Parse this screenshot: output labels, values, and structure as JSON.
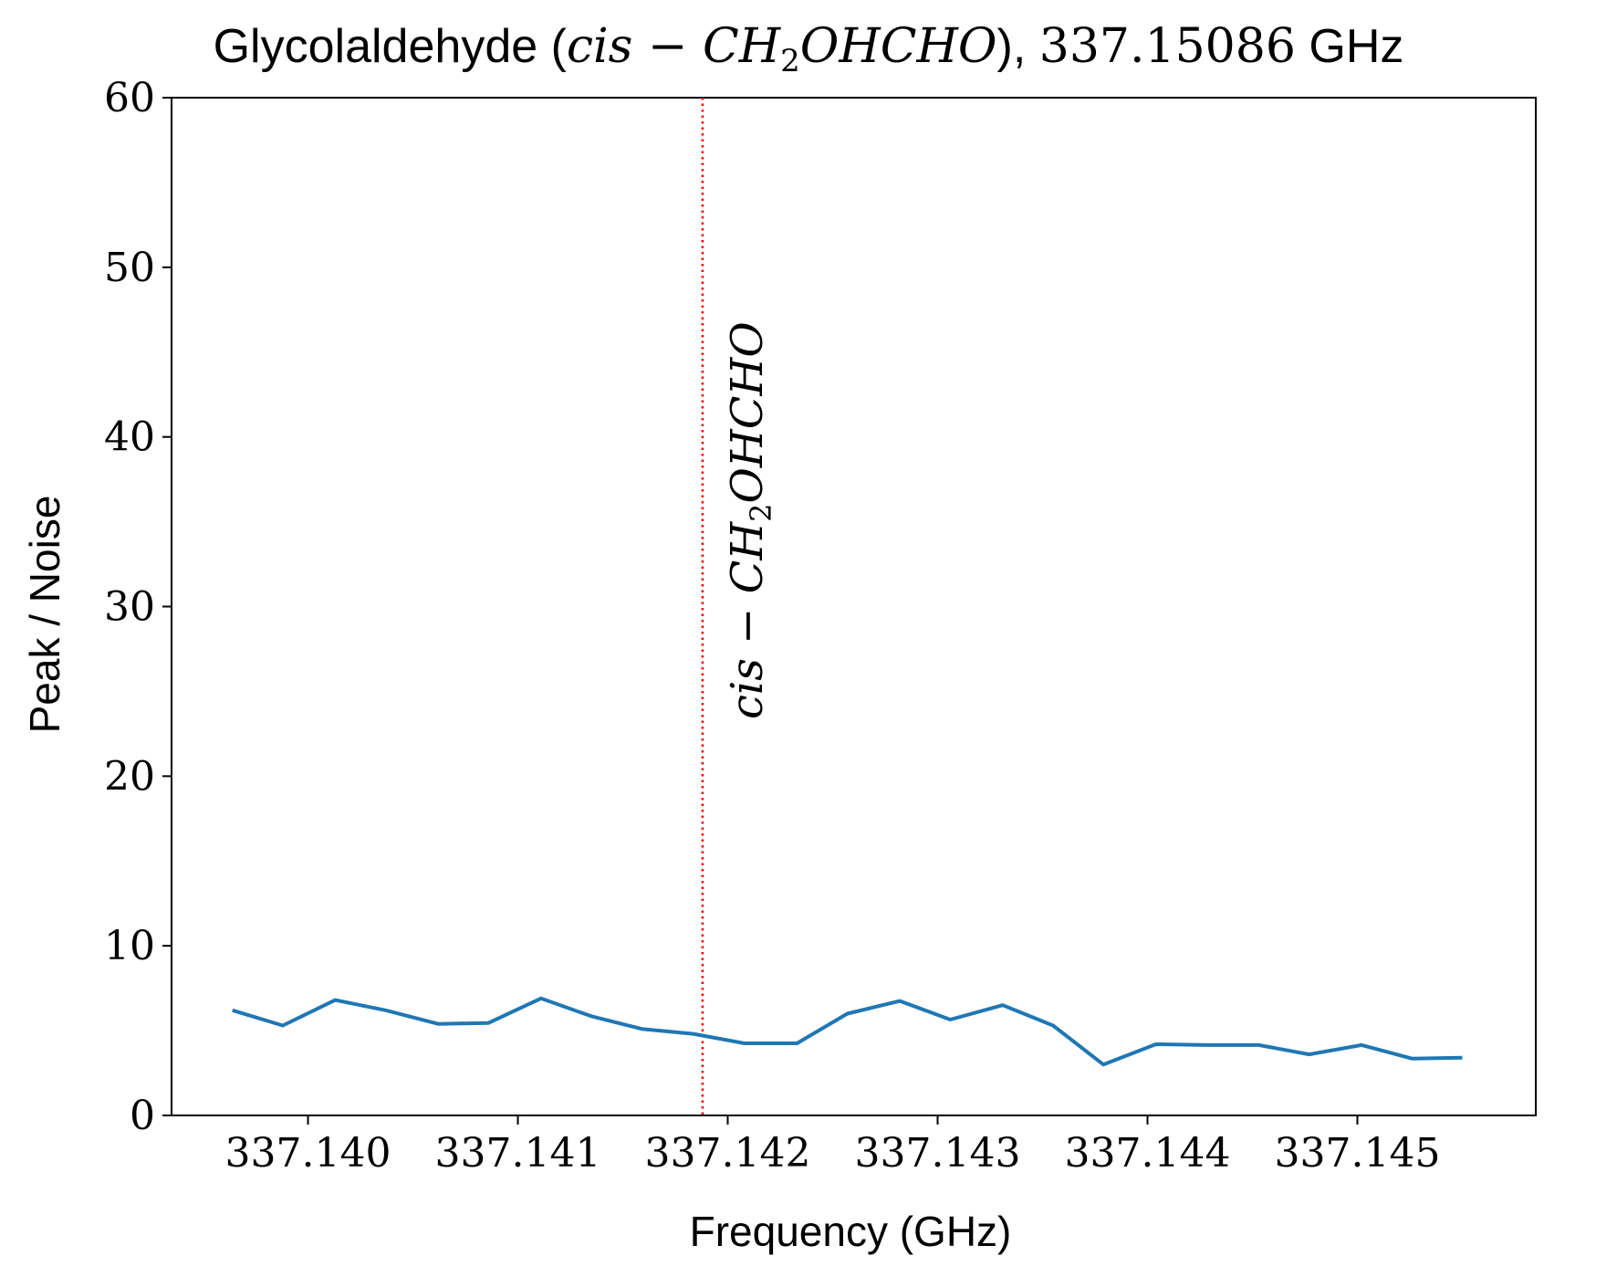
{
  "chart_data": {
    "type": "line",
    "title": {
      "prefix": "Glycolaldehyde (",
      "species_math": "cis − CH",
      "species_sub": "2",
      "species_math_rest": "OHCHO",
      "suffix_paren": "), ",
      "freq_value": "337.15086",
      "freq_unit": " GHz"
    },
    "xlabel": "Frequency (GHz)",
    "ylabel": "Peak / Noise",
    "xlim": [
      337.13935,
      337.14585
    ],
    "ylim": [
      0,
      60
    ],
    "x_ticks": [
      {
        "value": 337.14,
        "label": "337.140"
      },
      {
        "value": 337.141,
        "label": "337.141"
      },
      {
        "value": 337.142,
        "label": "337.142"
      },
      {
        "value": 337.143,
        "label": "337.143"
      },
      {
        "value": 337.144,
        "label": "337.144"
      },
      {
        "value": 337.145,
        "label": "337.145"
      }
    ],
    "y_ticks": [
      {
        "value": 0,
        "label": "0"
      },
      {
        "value": 10,
        "label": "10"
      },
      {
        "value": 20,
        "label": "20"
      },
      {
        "value": 30,
        "label": "30"
      },
      {
        "value": 40,
        "label": "40"
      },
      {
        "value": 50,
        "label": "50"
      },
      {
        "value": 60,
        "label": "60"
      }
    ],
    "series": [
      {
        "color": "#1f77b4",
        "x": [
          337.13964,
          337.13988,
          337.14013,
          337.14037,
          337.14062,
          337.14086,
          337.14111,
          337.14135,
          337.14159,
          337.14184,
          337.14208,
          337.14233,
          337.14257,
          337.14282,
          337.14306,
          337.14331,
          337.14355,
          337.14379,
          337.14404,
          337.14428,
          337.14453,
          337.14477,
          337.14502,
          337.14526,
          337.1455
        ],
        "y": [
          6.2,
          5.3,
          6.8,
          6.2,
          5.4,
          5.45,
          6.9,
          5.85,
          5.1,
          4.8,
          4.25,
          4.25,
          6.0,
          6.75,
          5.65,
          6.5,
          5.3,
          3.0,
          4.2,
          4.15,
          4.15,
          3.6,
          4.15,
          3.35,
          3.4
        ]
      }
    ],
    "markers": [
      {
        "x": 337.14188,
        "color": "#ff0000",
        "style": "dotted",
        "label_math": "cis − CH",
        "label_sub": "2",
        "label_math_rest": "OHCHO"
      }
    ],
    "grid": false,
    "legend": "none"
  }
}
